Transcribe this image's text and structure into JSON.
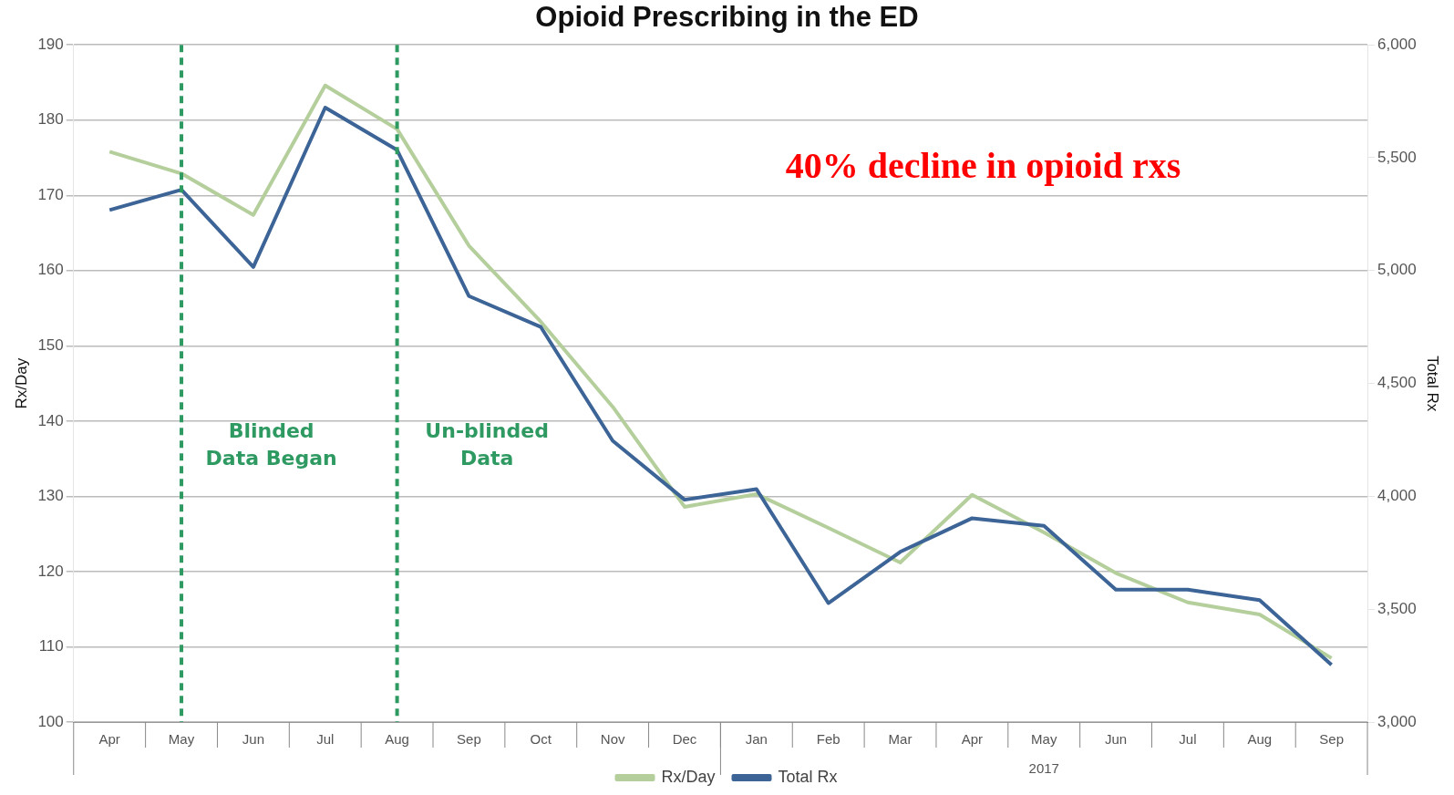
{
  "chart_data": {
    "type": "line",
    "title": "Opioid Prescribing in the ED",
    "ylabel": "Rx/Day",
    "y2label": "Total Rx",
    "categories": [
      "Apr",
      "May",
      "Jun",
      "Jul",
      "Aug",
      "Sep",
      "Oct",
      "Nov",
      "Dec",
      "Jan",
      "Feb",
      "Mar",
      "Apr",
      "May",
      "Jun",
      "Jul",
      "Aug",
      "Sep"
    ],
    "series": [
      {
        "name": "Rx/Day",
        "color": "#b5cf9c",
        "values": [
          175.8,
          172.9,
          167.4,
          184.6,
          178.8,
          163.3,
          153.2,
          141.9,
          128.6,
          130.3,
          125.8,
          121.2,
          130.2,
          125.2,
          119.8,
          115.9,
          114.3,
          108.5
        ]
      },
      {
        "name": "Total Rx",
        "color": "#3c6496",
        "axis": "y2",
        "values": [
          5268,
          5358,
          5016,
          5722,
          5534,
          4887,
          4750,
          4246,
          3985,
          4032,
          3527,
          3754,
          3903,
          3869,
          3587,
          3587,
          3540,
          3253
        ]
      }
    ],
    "ylim": [
      100,
      190
    ],
    "yticks": [
      100,
      110,
      120,
      130,
      140,
      150,
      160,
      170,
      180,
      190
    ],
    "y2lim": [
      3000,
      6000
    ],
    "y2ticks": [
      {
        "value": 3000,
        "label": "3,000"
      },
      {
        "value": 3500,
        "label": "3,500"
      },
      {
        "value": 4000,
        "label": "4,000"
      },
      {
        "value": 4500,
        "label": "4,500"
      },
      {
        "value": 5000,
        "label": "5,000"
      },
      {
        "value": 5500,
        "label": "5,500"
      },
      {
        "value": 6000,
        "label": "6,000"
      }
    ],
    "ref_lines": [
      {
        "axis": "x",
        "value": "May",
        "label": "Blinded Data Began",
        "color": "#2e9a62",
        "line_style": "dashed"
      },
      {
        "axis": "x",
        "value": "Aug",
        "label": "Un-blinded Data",
        "color": "#2e9a62",
        "line_style": "dashed"
      }
    ],
    "annotations": [
      "40% decline in opioid rxs",
      "2017"
    ],
    "grid": "y",
    "legend": "bottom",
    "marker": "none",
    "line_style": "solid"
  }
}
